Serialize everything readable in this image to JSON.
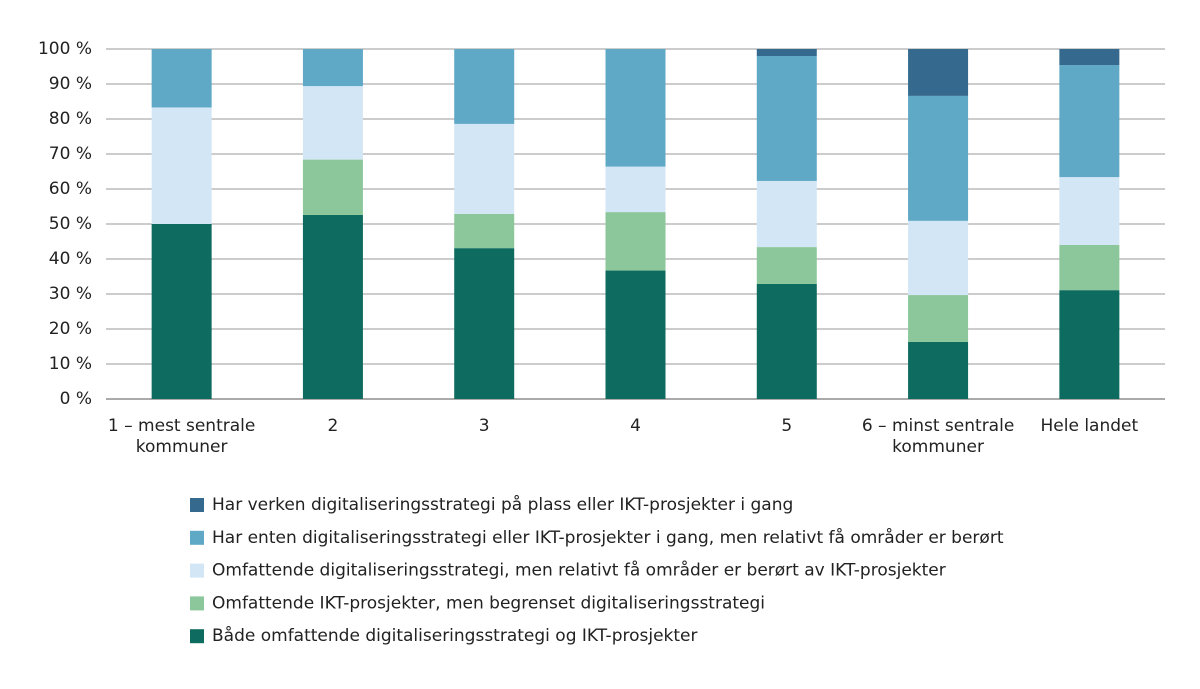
{
  "chart_data": {
    "type": "stacked_bar",
    "categories": [
      "1 – mest sentrale kommuner",
      "2",
      "3",
      "4",
      "5",
      "6 – minst sentrale kommuner",
      "Hele landet"
    ],
    "series": [
      {
        "name": "Både omfattende digitaliseringsstrategi og IKT-prosjekter",
        "color": "#0e6b5f",
        "values": [
          50,
          52.6,
          43.1,
          36.7,
          32.9,
          16.3,
          31.1
        ]
      },
      {
        "name": "Omfattende IKT-prosjekter, men begrenset digitaliseringsstrategi",
        "color": "#8bc79a",
        "values": [
          0,
          15.8,
          9.8,
          16.7,
          10.5,
          13.4,
          12.9
        ]
      },
      {
        "name": "Omfattende digitaliseringsstrategi, men relativt få områder er berørt av IKT-prosjekter",
        "color": "#d3e6f5",
        "values": [
          33.3,
          21,
          25.7,
          13,
          18.9,
          21.2,
          19.4
        ]
      },
      {
        "name": "Har enten digitaliseringsstrategi eller IKT-prosjekter i gang, men relativt få områder er berørt",
        "color": "#5fa8c6",
        "values": [
          16.7,
          10.6,
          21.4,
          33.6,
          35.7,
          35.7,
          32
        ]
      },
      {
        "name": "Har verken digitaliseringsstrategi på plass eller IKT-prosjekter i gang",
        "color": "#356a8e",
        "values": [
          0,
          0,
          0,
          0,
          2,
          13.4,
          4.6
        ]
      }
    ],
    "ylim": [
      0,
      100
    ],
    "yticks": [
      {
        "value": 0,
        "label": "0 %"
      },
      {
        "value": 10,
        "label": "10 %"
      },
      {
        "value": 20,
        "label": "20 %"
      },
      {
        "value": 30,
        "label": "30 %"
      },
      {
        "value": 40,
        "label": "40 %"
      },
      {
        "value": 50,
        "label": "50 %"
      },
      {
        "value": 60,
        "label": "60 %"
      },
      {
        "value": 70,
        "label": "70 %"
      },
      {
        "value": 80,
        "label": "80 %"
      },
      {
        "value": 90,
        "label": "90 %"
      },
      {
        "value": 100,
        "label": "100 %"
      }
    ],
    "grid": true
  }
}
